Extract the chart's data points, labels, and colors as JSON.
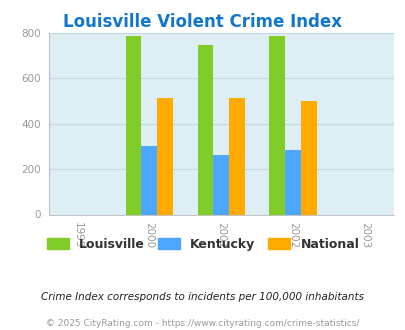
{
  "title": "Louisville Violent Crime Index",
  "years": [
    1999,
    2000,
    2001,
    2002,
    2003
  ],
  "data_years": [
    2000,
    2001,
    2002
  ],
  "louisville": [
    787,
    745,
    787
  ],
  "kentucky": [
    300,
    262,
    284
  ],
  "national": [
    512,
    512,
    500
  ],
  "louisville_color": "#80cc28",
  "kentucky_color": "#4da6ff",
  "national_color": "#ffaa00",
  "plot_bg_color": "#ddeef4",
  "ylim": [
    0,
    800
  ],
  "yticks": [
    0,
    200,
    400,
    600,
    800
  ],
  "bar_width": 0.22,
  "legend_labels": [
    "Louisville",
    "Kentucky",
    "National"
  ],
  "footnote1": "Crime Index corresponds to incidents per 100,000 inhabitants",
  "footnote2": "© 2025 CityRating.com - https://www.cityrating.com/crime-statistics/",
  "title_color": "#1177cc",
  "footnote1_color": "#222222",
  "footnote2_color": "#999999",
  "tick_label_color": "#999999",
  "grid_color": "#c0d8e0",
  "spine_color": "#aaaaaa"
}
